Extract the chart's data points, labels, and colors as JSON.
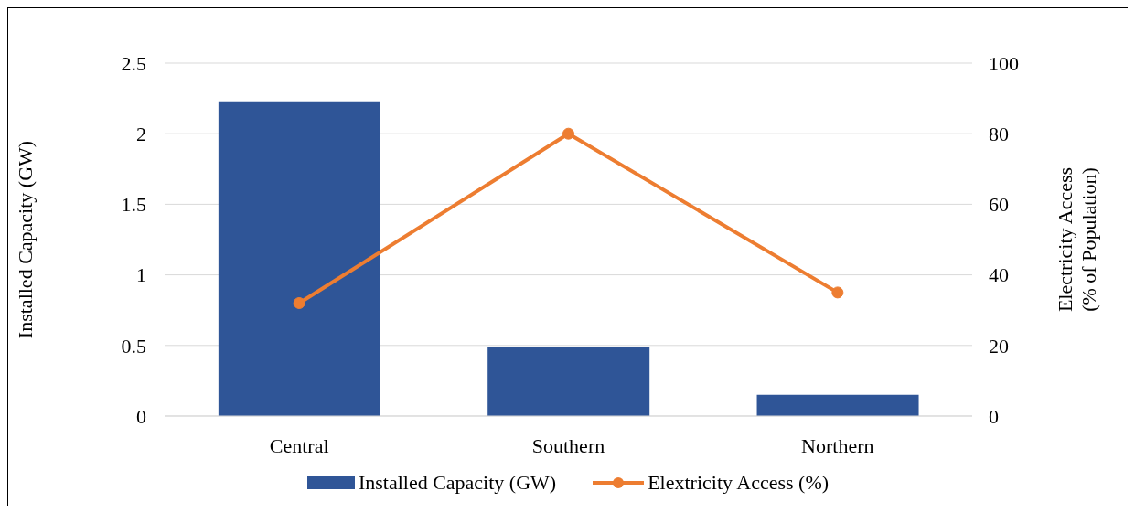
{
  "chart_data": {
    "type": "bar",
    "categories": [
      "Central",
      "Southern",
      "Northern"
    ],
    "series": [
      {
        "name": "Installed Capacity (GW)",
        "color": "#2f5597",
        "values": [
          2.23,
          0.49,
          0.15
        ]
      },
      {
        "name": "Elextricity Access (%)",
        "type": "line",
        "axis": "y2",
        "color": "#ed7d31",
        "values": [
          32,
          80,
          35
        ]
      }
    ],
    "ylabel": "Installed Capacity (GW)",
    "y2label": "Electricity Access (% of Population)",
    "ylim": [
      0,
      2.5
    ],
    "yticks": [
      0,
      0.5,
      1,
      1.5,
      2,
      2.5
    ],
    "y2lim": [
      0,
      100
    ],
    "y2ticks": [
      0,
      20,
      40,
      60,
      80,
      100
    ],
    "grid": "y",
    "legend": "bottom",
    "marker": "circle"
  }
}
